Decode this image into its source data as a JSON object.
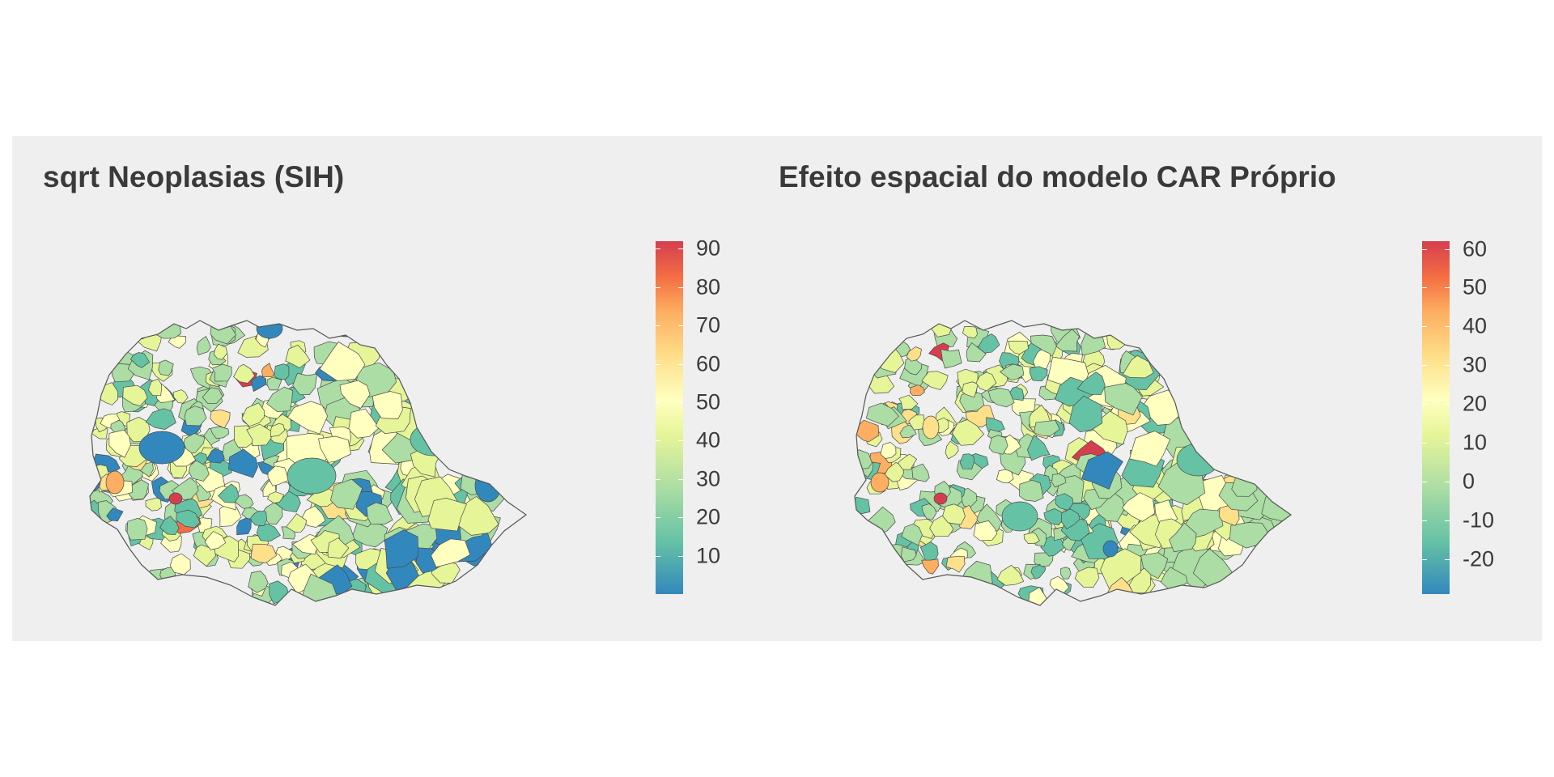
{
  "panels": [
    {
      "title": "sqrt Neoplasias (SIH)",
      "legend": {
        "min": 0,
        "max": 92,
        "ticks": [
          {
            "value": 10,
            "label": "10"
          },
          {
            "value": 20,
            "label": "20"
          },
          {
            "value": 30,
            "label": "30"
          },
          {
            "value": 40,
            "label": "40"
          },
          {
            "value": 50,
            "label": "50"
          },
          {
            "value": 60,
            "label": "60"
          },
          {
            "value": 70,
            "label": "70"
          },
          {
            "value": 80,
            "label": "80"
          },
          {
            "value": 90,
            "label": "90"
          }
        ]
      },
      "palette": [
        "#3288bd",
        "#66c2a5",
        "#abdda4",
        "#e6f598",
        "#ffffbf",
        "#fee08b",
        "#fdae61",
        "#f46d43",
        "#d53e4f"
      ]
    },
    {
      "title": "Efeito espacial do modelo CAR Próprio",
      "legend": {
        "min": -29,
        "max": 62,
        "ticks": [
          {
            "value": -20,
            "label": "-20"
          },
          {
            "value": -10,
            "label": "-10"
          },
          {
            "value": 0,
            "label": "0"
          },
          {
            "value": 10,
            "label": "10"
          },
          {
            "value": 20,
            "label": "20"
          },
          {
            "value": 30,
            "label": "30"
          },
          {
            "value": 40,
            "label": "40"
          },
          {
            "value": 50,
            "label": "50"
          },
          {
            "value": 60,
            "label": "60"
          }
        ]
      },
      "palette": [
        "#3288bd",
        "#66c2a5",
        "#abdda4",
        "#e6f598",
        "#ffffbf",
        "#fee08b",
        "#fdae61",
        "#f46d43",
        "#d53e4f"
      ]
    }
  ]
}
